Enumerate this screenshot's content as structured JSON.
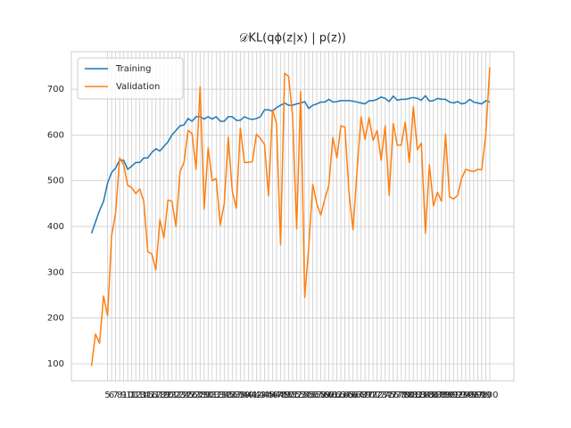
{
  "chart_data": {
    "type": "line",
    "title": "𝒟KL(qϕ(z|x) | p(z))",
    "x": [
      1,
      2,
      3,
      4,
      5,
      6,
      7,
      8,
      9,
      10,
      11,
      12,
      13,
      14,
      15,
      16,
      17,
      18,
      19,
      20,
      21,
      22,
      23,
      24,
      25,
      26,
      27,
      28,
      29,
      30,
      31,
      32,
      33,
      34,
      35,
      36,
      37,
      38,
      39,
      40,
      41,
      42,
      43,
      44,
      45,
      46,
      47,
      48,
      49,
      50,
      51,
      52,
      53,
      54,
      55,
      56,
      57,
      58,
      59,
      60,
      61,
      62,
      63,
      64,
      65,
      66,
      67,
      68,
      69,
      70,
      71,
      72,
      73,
      74,
      75,
      76,
      77,
      78,
      79,
      80,
      81,
      82,
      83,
      84,
      85,
      86,
      87,
      88,
      89,
      90,
      91,
      92,
      93,
      94,
      95,
      96,
      97,
      98,
      99,
      100
    ],
    "series": [
      {
        "name": "Training",
        "color": "#1f77b4",
        "values": [
          385,
          410,
          435,
          455,
          495,
          518,
          528,
          545,
          545,
          525,
          532,
          540,
          540,
          550,
          550,
          562,
          570,
          565,
          575,
          585,
          600,
          610,
          620,
          622,
          636,
          630,
          640,
          640,
          635,
          640,
          635,
          640,
          630,
          630,
          640,
          640,
          632,
          632,
          640,
          636,
          634,
          636,
          640,
          655,
          655,
          652,
          660,
          665,
          670,
          665,
          665,
          668,
          670,
          673,
          658,
          665,
          668,
          672,
          672,
          678,
          672,
          673,
          675,
          675,
          675,
          674,
          672,
          670,
          668,
          675,
          675,
          678,
          683,
          680,
          673,
          685,
          676,
          678,
          678,
          680,
          682,
          680,
          676,
          686,
          674,
          675,
          680,
          678,
          678,
          672,
          670,
          673,
          668,
          670,
          678,
          672,
          670,
          668,
          675,
          672
        ]
      },
      {
        "name": "Validation",
        "color": "#ff7f0e",
        "values": [
          95,
          165,
          145,
          248,
          205,
          380,
          430,
          550,
          535,
          490,
          485,
          472,
          482,
          455,
          345,
          340,
          305,
          415,
          375,
          458,
          455,
          400,
          520,
          540,
          610,
          603,
          525,
          705,
          438,
          572,
          500,
          505,
          403,
          450,
          595,
          477,
          440,
          615,
          540,
          540,
          542,
          602,
          592,
          580,
          467,
          655,
          625,
          360,
          735,
          728,
          640,
          395,
          695,
          245,
          355,
          492,
          450,
          425,
          460,
          490,
          595,
          550,
          620,
          617,
          475,
          393,
          520,
          640,
          590,
          638,
          588,
          610,
          545,
          620,
          468,
          625,
          578,
          578,
          628,
          540,
          662,
          568,
          582,
          385,
          535,
          445,
          475,
          455,
          602,
          465,
          460,
          468,
          505,
          525,
          522,
          520,
          525,
          524,
          600,
          748
        ]
      }
    ],
    "xlim": [
      -4,
      106
    ],
    "ylim": [
      63,
      782
    ],
    "xticks": [
      5,
      6,
      7,
      8,
      9,
      10,
      11,
      12,
      13,
      14,
      15,
      16,
      17,
      18,
      19,
      20,
      21,
      22,
      23,
      24,
      25,
      26,
      27,
      28,
      29,
      30,
      31,
      32,
      33,
      34,
      35,
      36,
      37,
      38,
      39,
      40,
      41,
      42,
      43,
      44,
      45,
      46,
      47,
      48,
      49,
      50,
      51,
      52,
      53,
      54,
      55,
      56,
      57,
      58,
      59,
      60,
      61,
      62,
      63,
      64,
      65,
      66,
      67,
      68,
      69,
      70,
      71,
      72,
      73,
      74,
      75,
      76,
      77,
      78,
      79,
      80,
      81,
      82,
      83,
      84,
      85,
      86,
      87,
      88,
      89,
      90,
      91,
      92,
      93,
      94,
      95,
      96,
      97,
      98,
      99,
      100
    ],
    "yticks": [
      100,
      200,
      300,
      400,
      500,
      600,
      700
    ],
    "grid": true,
    "legend": "upper left"
  }
}
